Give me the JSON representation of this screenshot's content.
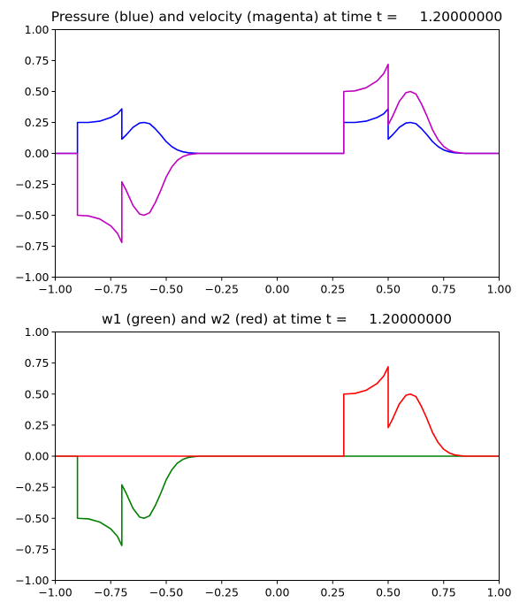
{
  "chart_data": [
    {
      "type": "line",
      "title": "Pressure (blue) and velocity (magenta) at time t =     1.20000000",
      "xlim": [
        -1.0,
        1.0
      ],
      "ylim": [
        -1.0,
        1.0
      ],
      "x_ticks": [
        "−1.00",
        "−0.75",
        "−0.50",
        "−0.25",
        "0.00",
        "0.25",
        "0.50",
        "0.75",
        "1.00"
      ],
      "y_ticks": [
        "1.00",
        "0.75",
        "0.50",
        "0.25",
        "0.00",
        "−0.25",
        "−0.50",
        "−0.75",
        "−1.00"
      ],
      "grid": false,
      "series": [
        {
          "color": "#0000ff",
          "points": [
            [
              -1.0,
              0
            ],
            [
              -0.9,
              0
            ],
            [
              -0.9,
              0.25
            ],
            [
              -0.85,
              0.25
            ],
            [
              -0.8,
              0.26
            ],
            [
              -0.75,
              0.29
            ],
            [
              -0.72,
              0.32
            ],
            [
              -0.7,
              0.36
            ],
            [
              -0.7,
              0.115
            ],
            [
              -0.68,
              0.15
            ],
            [
              -0.65,
              0.21
            ],
            [
              -0.62,
              0.245
            ],
            [
              -0.6,
              0.25
            ],
            [
              -0.575,
              0.24
            ],
            [
              -0.55,
              0.2
            ],
            [
              -0.525,
              0.15
            ],
            [
              -0.5,
              0.095
            ],
            [
              -0.475,
              0.055
            ],
            [
              -0.45,
              0.028
            ],
            [
              -0.425,
              0.013
            ],
            [
              -0.4,
              0.005
            ],
            [
              -0.375,
              0.002
            ],
            [
              -0.35,
              0
            ],
            [
              0.3,
              0
            ],
            [
              0.3,
              0.25
            ],
            [
              0.35,
              0.25
            ],
            [
              0.4,
              0.26
            ],
            [
              0.45,
              0.29
            ],
            [
              0.48,
              0.32
            ],
            [
              0.5,
              0.36
            ],
            [
              0.5,
              0.115
            ],
            [
              0.52,
              0.15
            ],
            [
              0.55,
              0.21
            ],
            [
              0.58,
              0.245
            ],
            [
              0.6,
              0.25
            ],
            [
              0.625,
              0.24
            ],
            [
              0.65,
              0.2
            ],
            [
              0.675,
              0.15
            ],
            [
              0.7,
              0.095
            ],
            [
              0.725,
              0.055
            ],
            [
              0.75,
              0.028
            ],
            [
              0.775,
              0.013
            ],
            [
              0.8,
              0.005
            ],
            [
              0.825,
              0.002
            ],
            [
              0.85,
              0
            ],
            [
              1.0,
              0
            ]
          ]
        },
        {
          "color": "#c000c0",
          "points": [
            [
              -1.0,
              0
            ],
            [
              -0.9,
              0
            ],
            [
              -0.9,
              -0.5
            ],
            [
              -0.85,
              -0.505
            ],
            [
              -0.8,
              -0.53
            ],
            [
              -0.75,
              -0.585
            ],
            [
              -0.72,
              -0.645
            ],
            [
              -0.7,
              -0.72
            ],
            [
              -0.7,
              -0.23
            ],
            [
              -0.68,
              -0.3
            ],
            [
              -0.65,
              -0.42
            ],
            [
              -0.62,
              -0.49
            ],
            [
              -0.6,
              -0.5
            ],
            [
              -0.575,
              -0.48
            ],
            [
              -0.55,
              -0.4
            ],
            [
              -0.525,
              -0.3
            ],
            [
              -0.5,
              -0.19
            ],
            [
              -0.475,
              -0.11
            ],
            [
              -0.45,
              -0.056
            ],
            [
              -0.425,
              -0.026
            ],
            [
              -0.4,
              -0.01
            ],
            [
              -0.375,
              -0.004
            ],
            [
              -0.35,
              0
            ],
            [
              0.3,
              0
            ],
            [
              0.3,
              0.5
            ],
            [
              0.35,
              0.505
            ],
            [
              0.4,
              0.53
            ],
            [
              0.45,
              0.585
            ],
            [
              0.48,
              0.645
            ],
            [
              0.5,
              0.72
            ],
            [
              0.5,
              0.23
            ],
            [
              0.52,
              0.3
            ],
            [
              0.55,
              0.42
            ],
            [
              0.58,
              0.49
            ],
            [
              0.6,
              0.5
            ],
            [
              0.625,
              0.48
            ],
            [
              0.65,
              0.4
            ],
            [
              0.675,
              0.3
            ],
            [
              0.7,
              0.19
            ],
            [
              0.725,
              0.11
            ],
            [
              0.75,
              0.056
            ],
            [
              0.775,
              0.026
            ],
            [
              0.8,
              0.01
            ],
            [
              0.825,
              0.004
            ],
            [
              0.85,
              0
            ],
            [
              1.0,
              0
            ]
          ]
        }
      ]
    },
    {
      "type": "line",
      "title": "w1 (green) and w2 (red) at time t =     1.20000000",
      "xlim": [
        -1.0,
        1.0
      ],
      "ylim": [
        -1.0,
        1.0
      ],
      "x_ticks": [
        "−1.00",
        "−0.75",
        "−0.50",
        "−0.25",
        "0.00",
        "0.25",
        "0.50",
        "0.75",
        "1.00"
      ],
      "y_ticks": [
        "1.00",
        "0.75",
        "0.50",
        "0.25",
        "0.00",
        "−0.25",
        "−0.50",
        "−0.75",
        "−1.00"
      ],
      "grid": false,
      "series": [
        {
          "color": "#008000",
          "points": [
            [
              -1.0,
              0
            ],
            [
              -0.9,
              0
            ],
            [
              -0.9,
              -0.5
            ],
            [
              -0.85,
              -0.505
            ],
            [
              -0.8,
              -0.53
            ],
            [
              -0.75,
              -0.585
            ],
            [
              -0.72,
              -0.645
            ],
            [
              -0.7,
              -0.72
            ],
            [
              -0.7,
              -0.23
            ],
            [
              -0.68,
              -0.3
            ],
            [
              -0.65,
              -0.42
            ],
            [
              -0.62,
              -0.49
            ],
            [
              -0.6,
              -0.5
            ],
            [
              -0.575,
              -0.48
            ],
            [
              -0.55,
              -0.4
            ],
            [
              -0.525,
              -0.3
            ],
            [
              -0.5,
              -0.19
            ],
            [
              -0.475,
              -0.11
            ],
            [
              -0.45,
              -0.056
            ],
            [
              -0.425,
              -0.026
            ],
            [
              -0.4,
              -0.01
            ],
            [
              -0.375,
              -0.004
            ],
            [
              -0.35,
              0
            ],
            [
              1.0,
              0
            ]
          ]
        },
        {
          "color": "#ff0000",
          "points": [
            [
              -1.0,
              0
            ],
            [
              0.3,
              0
            ],
            [
              0.3,
              0.5
            ],
            [
              0.35,
              0.505
            ],
            [
              0.4,
              0.53
            ],
            [
              0.45,
              0.585
            ],
            [
              0.48,
              0.645
            ],
            [
              0.5,
              0.72
            ],
            [
              0.5,
              0.23
            ],
            [
              0.52,
              0.3
            ],
            [
              0.55,
              0.42
            ],
            [
              0.58,
              0.49
            ],
            [
              0.6,
              0.5
            ],
            [
              0.625,
              0.48
            ],
            [
              0.65,
              0.4
            ],
            [
              0.675,
              0.3
            ],
            [
              0.7,
              0.19
            ],
            [
              0.725,
              0.11
            ],
            [
              0.75,
              0.056
            ],
            [
              0.775,
              0.026
            ],
            [
              0.8,
              0.01
            ],
            [
              0.825,
              0.004
            ],
            [
              0.85,
              0
            ],
            [
              1.0,
              0
            ]
          ]
        }
      ]
    }
  ]
}
